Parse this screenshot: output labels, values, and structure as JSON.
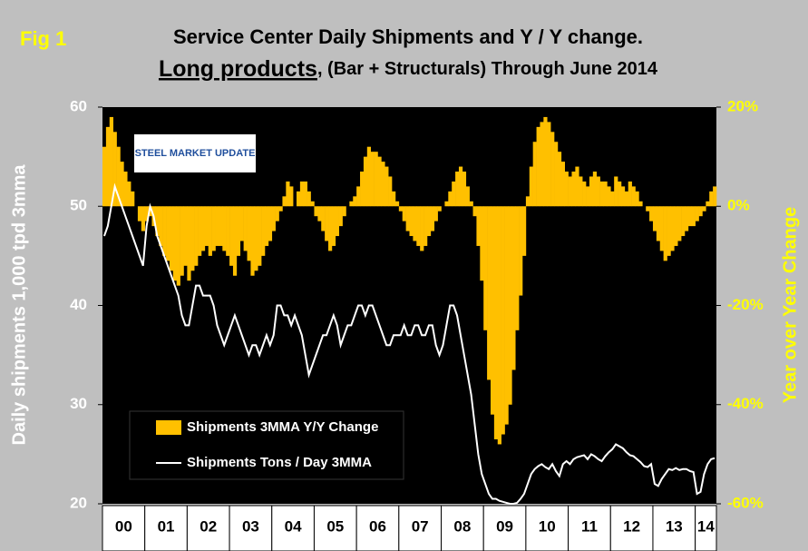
{
  "chart_data": {
    "type": "bar",
    "figure_label": "Fig 1",
    "title": "Service Center Daily Shipments and Y / Y change.",
    "subtitle_parts": [
      "Long products",
      ", (Bar + Structurals) Through June 2014"
    ],
    "logo_text": "STEEL MARKET UPDATE",
    "y_label": "Daily shipments 1,000 tpd 3mma",
    "y2_label": "Year over Year Change",
    "categories": [
      "00",
      null,
      null,
      null,
      null,
      null,
      null,
      null,
      null,
      null,
      null,
      null,
      "01",
      null,
      null,
      null,
      null,
      null,
      null,
      null,
      null,
      null,
      null,
      null,
      "02",
      null,
      null,
      null,
      null,
      null,
      null,
      null,
      null,
      null,
      null,
      null,
      "03",
      null,
      null,
      null,
      null,
      null,
      null,
      null,
      null,
      null,
      null,
      null,
      "04",
      null,
      null,
      null,
      null,
      null,
      null,
      null,
      null,
      null,
      null,
      null,
      "05",
      null,
      null,
      null,
      null,
      null,
      null,
      null,
      null,
      null,
      null,
      null,
      "06",
      null,
      null,
      null,
      null,
      null,
      null,
      null,
      null,
      null,
      null,
      null,
      "07",
      null,
      null,
      null,
      null,
      null,
      null,
      null,
      null,
      null,
      null,
      null,
      "08",
      null,
      null,
      null,
      null,
      null,
      null,
      null,
      null,
      null,
      null,
      null,
      "09",
      null,
      null,
      null,
      null,
      null,
      null,
      null,
      null,
      null,
      null,
      null,
      "10",
      null,
      null,
      null,
      null,
      null,
      null,
      null,
      null,
      null,
      null,
      null,
      "11",
      null,
      null,
      null,
      null,
      null,
      null,
      null,
      null,
      null,
      null,
      null,
      "12",
      null,
      null,
      null,
      null,
      null,
      null,
      null,
      null,
      null,
      null,
      null,
      "13",
      null,
      null,
      null,
      null,
      null,
      null,
      null,
      null,
      null,
      null,
      null,
      "14",
      null,
      null,
      null,
      null,
      null
    ],
    "series": [
      {
        "name": "Shipments 3MMA Y/Y Change",
        "color": "#ffc000",
        "type": "bar",
        "axis": "y2",
        "values": [
          12,
          16,
          18,
          15,
          12,
          9,
          7,
          5,
          3,
          0,
          -3,
          -5,
          -3,
          -2,
          -4,
          -6,
          -8,
          -10,
          -11,
          -13,
          -15,
          -16,
          -14,
          -12,
          -15,
          -13,
          -12,
          -10,
          -9,
          -8,
          -10,
          -9,
          -8,
          -8,
          -9,
          -10,
          -12,
          -14,
          -10,
          -7,
          -9,
          -11,
          -14,
          -13,
          -12,
          -10,
          -8,
          -7,
          -5,
          -3,
          -1,
          2,
          5,
          4,
          0,
          3,
          5,
          5,
          3,
          1,
          -2,
          -3,
          -5,
          -7,
          -9,
          -8,
          -6,
          -4,
          -2,
          0,
          1,
          2,
          4,
          7,
          10,
          12,
          11,
          11,
          10,
          9,
          8,
          6,
          3,
          1,
          -1,
          -3,
          -5,
          -6,
          -7,
          -8,
          -9,
          -8,
          -6,
          -5,
          -3,
          -1,
          0,
          1,
          3,
          5,
          7,
          8,
          7,
          4,
          1,
          -2,
          -8,
          -15,
          -25,
          -35,
          -42,
          -47,
          -48,
          -46,
          -44,
          -40,
          -33,
          -25,
          -18,
          -10,
          2,
          8,
          13,
          16,
          17,
          18,
          17,
          15,
          13,
          11,
          9,
          7,
          6,
          7,
          8,
          6,
          5,
          4,
          6,
          7,
          6,
          5,
          5,
          4,
          3,
          6,
          5,
          4,
          3,
          5,
          4,
          3,
          1,
          0,
          -1,
          -3,
          -5,
          -7,
          -9,
          -11,
          -10,
          -9,
          -8,
          -7,
          -6,
          -5,
          -4,
          -4,
          -3,
          -2,
          -1,
          1,
          3,
          4
        ]
      },
      {
        "name": "Shipments Tons / Day 3MMA",
        "color": "#ffffff",
        "type": "line",
        "values": [
          47,
          48,
          50,
          52,
          51,
          50,
          49,
          48,
          47,
          46,
          45,
          44,
          48,
          50,
          49,
          47,
          46,
          45,
          44,
          43,
          42,
          41,
          39,
          38,
          38,
          40,
          42,
          42,
          41,
          41,
          41,
          40,
          38,
          37,
          36,
          37,
          38,
          39,
          38,
          37,
          36,
          35,
          36,
          36,
          35,
          36,
          37,
          36,
          37,
          40,
          40,
          39,
          39,
          38,
          39,
          38,
          37,
          35,
          33,
          34,
          35,
          36,
          37,
          37,
          38,
          39,
          38,
          36,
          37,
          38,
          38,
          39,
          40,
          40,
          39,
          40,
          40,
          39,
          38,
          37,
          36,
          36,
          37,
          37,
          37,
          38,
          37,
          37,
          38,
          38,
          37,
          37,
          38,
          38,
          36,
          35,
          36,
          38,
          40,
          40,
          39,
          37,
          35,
          33,
          31,
          28,
          25,
          23,
          22,
          21,
          20.5,
          20.5,
          20.3,
          20.2,
          20.1,
          20,
          20,
          20.1,
          20.5,
          21,
          22,
          23,
          23.5,
          23.8,
          24,
          23.7,
          23.5,
          24,
          23.3,
          22.8,
          24,
          24.3,
          24,
          24.5,
          24.7,
          24.8,
          24.9,
          24.5,
          25,
          24.8,
          24.5,
          24.3,
          24.8,
          25.2,
          25.5,
          26,
          25.8,
          25.6,
          25.2,
          24.9,
          24.8,
          24.5,
          24.2,
          23.8,
          23.7,
          24,
          22,
          21.8,
          22.5,
          23,
          23.5,
          23.4,
          23.6,
          23.4,
          23.5,
          23.5,
          23.3,
          23.2,
          21,
          21.2,
          23,
          24,
          24.5,
          24.6
        ]
      }
    ],
    "ylim": [
      20,
      60
    ],
    "yticks": [
      20,
      30,
      40,
      50,
      60
    ],
    "y2lim": [
      -60,
      20
    ],
    "y2ticks": [
      {
        "value": -60,
        "label": "-60%"
      },
      {
        "value": -40,
        "label": "-40%"
      },
      {
        "value": -20,
        "label": "-20%"
      },
      {
        "value": 0,
        "label": "0%"
      },
      {
        "value": 20,
        "label": "20%"
      }
    ]
  }
}
